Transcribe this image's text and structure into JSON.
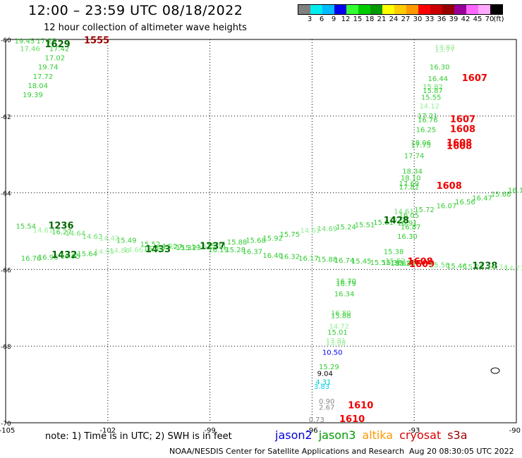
{
  "title": "12:00 – 23:59 UTC 08/18/2022",
  "subtitle": "12 hour collection of altimeter wave heights",
  "legend": {
    "unit": "(ft)",
    "ticks": [
      "3",
      "6",
      "9",
      "12",
      "15",
      "18",
      "21",
      "24",
      "27",
      "30",
      "33",
      "36",
      "39",
      "42",
      "45",
      "70"
    ],
    "colors": [
      "#808080",
      "#00eeee",
      "#00bbff",
      "#0000ee",
      "#33ff33",
      "#00cc00",
      "#009900",
      "#ffff00",
      "#ffcc00",
      "#ff9900",
      "#ff0000",
      "#cc0000",
      "#990000",
      "#990099",
      "#ff66ff",
      "#ffaaff",
      "#000000"
    ]
  },
  "axes": {
    "lon_labels": [
      "-105",
      "-102",
      "-99",
      "-96",
      "-93",
      "-90"
    ],
    "lat_labels": [
      "-60",
      "-62",
      "-64",
      "-66",
      "-68",
      "-70"
    ]
  },
  "tracks": [
    {
      "lon": -104.74,
      "lat": -60.1,
      "text": "19.45",
      "color": "#33cc33",
      "size": 10
    },
    {
      "lon": -104.1,
      "lat": -60.1,
      "text": "17.25",
      "color": "#33cc33",
      "size": 10
    },
    {
      "lon": -104.58,
      "lat": -60.3,
      "text": "17.46",
      "color": "#66dd66",
      "size": 10
    },
    {
      "lon": -103.72,
      "lat": -60.3,
      "text": "17.42",
      "color": "#33cc33",
      "size": 10
    },
    {
      "lon": -103.85,
      "lat": -60.2,
      "text": "1629",
      "color": "#006600",
      "size": 13,
      "bold": true
    },
    {
      "lon": -102.7,
      "lat": -60.1,
      "text": "1555",
      "color": "#990000",
      "size": 13,
      "bold": true
    },
    {
      "lon": -103.85,
      "lat": -60.54,
      "text": "17.02",
      "color": "#33cc33",
      "size": 10
    },
    {
      "lon": -104.05,
      "lat": -60.78,
      "text": "19.74",
      "color": "#33cc33",
      "size": 10
    },
    {
      "lon": -104.2,
      "lat": -61.03,
      "text": "17.72",
      "color": "#33cc33",
      "size": 10
    },
    {
      "lon": -104.35,
      "lat": -61.27,
      "text": "18.04",
      "color": "#33cc33",
      "size": 10
    },
    {
      "lon": -104.5,
      "lat": -61.51,
      "text": "19.39",
      "color": "#33cc33",
      "size": 10
    },
    {
      "lon": -92.4,
      "lat": -60.27,
      "text": "13.82",
      "color": "#99ee99",
      "size": 10
    },
    {
      "lon": -92.4,
      "lat": -60.33,
      "text": "13.77",
      "color": "#99ee99",
      "size": 10
    },
    {
      "lon": -92.55,
      "lat": -60.78,
      "text": "16.30",
      "color": "#33cc33",
      "size": 10
    },
    {
      "lon": -92.6,
      "lat": -61.08,
      "text": "16.44",
      "color": "#33cc33",
      "size": 10
    },
    {
      "lon": -91.6,
      "lat": -61.08,
      "text": "1607",
      "color": "#ee0000",
      "size": 13,
      "bold": true
    },
    {
      "lon": -92.75,
      "lat": -61.3,
      "text": "15.82",
      "color": "#66dd66",
      "size": 10
    },
    {
      "lon": -92.75,
      "lat": -61.4,
      "text": "15.87",
      "color": "#33cc33",
      "size": 10
    },
    {
      "lon": -92.8,
      "lat": -61.57,
      "text": "15.55",
      "color": "#33cc33",
      "size": 10
    },
    {
      "lon": -92.85,
      "lat": -61.8,
      "text": "14.12",
      "color": "#99ee99",
      "size": 10
    },
    {
      "lon": -92.9,
      "lat": -62.06,
      "text": "17.21",
      "color": "#33cc33",
      "size": 10
    },
    {
      "lon": -92.9,
      "lat": -62.16,
      "text": "16.76",
      "color": "#33cc33",
      "size": 10
    },
    {
      "lon": -91.95,
      "lat": -62.16,
      "text": "1607",
      "color": "#ee0000",
      "size": 13,
      "bold": true
    },
    {
      "lon": -92.95,
      "lat": -62.42,
      "text": "16.25",
      "color": "#33cc33",
      "size": 10
    },
    {
      "lon": -91.95,
      "lat": -62.42,
      "text": "1608",
      "color": "#ee0000",
      "size": 13,
      "bold": true
    },
    {
      "lon": -93.1,
      "lat": -62.76,
      "text": "18.06",
      "color": "#33cc33",
      "size": 10
    },
    {
      "lon": -93.1,
      "lat": -62.82,
      "text": "17.75",
      "color": "#33cc33",
      "size": 10
    },
    {
      "lon": -92.05,
      "lat": -62.78,
      "text": "1608",
      "color": "#ee0000",
      "size": 13,
      "bold": true
    },
    {
      "lon": -92.05,
      "lat": -62.86,
      "text": "1608",
      "color": "#ee0000",
      "size": 13,
      "bold": true
    },
    {
      "lon": -93.3,
      "lat": -63.1,
      "text": "17.74",
      "color": "#33cc33",
      "size": 10
    },
    {
      "lon": -93.35,
      "lat": -63.5,
      "text": "18.34",
      "color": "#33cc33",
      "size": 10
    },
    {
      "lon": -93.4,
      "lat": -63.68,
      "text": "18.10",
      "color": "#33cc33",
      "size": 10
    },
    {
      "lon": -93.45,
      "lat": -63.82,
      "text": "17.69",
      "color": "#33cc33",
      "size": 10
    },
    {
      "lon": -93.45,
      "lat": -63.92,
      "text": "17.82",
      "color": "#33cc33",
      "size": 10
    },
    {
      "lon": -92.35,
      "lat": -63.9,
      "text": "1608",
      "color": "#ee0000",
      "size": 13,
      "bold": true
    },
    {
      "lon": -104.7,
      "lat": -64.94,
      "text": "15.54",
      "color": "#33cc33",
      "size": 10
    },
    {
      "lon": -103.75,
      "lat": -64.94,
      "text": "1236",
      "color": "#006600",
      "size": 13,
      "bold": true
    },
    {
      "lon": -104.2,
      "lat": -65.04,
      "text": "14.61",
      "color": "#99ee99",
      "size": 10
    },
    {
      "lon": -103.65,
      "lat": -65.08,
      "text": "16.27",
      "color": "#33cc33",
      "size": 10
    },
    {
      "lon": -103.25,
      "lat": -65.12,
      "text": "14.64",
      "color": "#66dd66",
      "size": 10
    },
    {
      "lon": -102.75,
      "lat": -65.2,
      "text": "14.63",
      "color": "#66dd66",
      "size": 10
    },
    {
      "lon": -102.25,
      "lat": -65.25,
      "text": "14.42",
      "color": "#99ee99",
      "size": 10
    },
    {
      "lon": -101.75,
      "lat": -65.3,
      "text": "15.49",
      "color": "#33cc33",
      "size": 10
    },
    {
      "lon": -101.05,
      "lat": -65.4,
      "text": "15.52",
      "color": "#33cc33",
      "size": 10
    },
    {
      "lon": -100.55,
      "lat": -65.45,
      "text": "14.98",
      "color": "#99ee99",
      "size": 10
    },
    {
      "lon": -100.0,
      "lat": -65.5,
      "text": "15.31",
      "color": "#33cc33",
      "size": 10
    },
    {
      "lon": -99.55,
      "lat": -65.47,
      "text": "14.63",
      "color": "#66dd66",
      "size": 10
    },
    {
      "lon": -99.1,
      "lat": -65.45,
      "text": "15.11",
      "color": "#33cc33",
      "size": 10
    },
    {
      "lon": -98.5,
      "lat": -65.35,
      "text": "15.88",
      "color": "#33cc33",
      "size": 10
    },
    {
      "lon": -97.95,
      "lat": -65.3,
      "text": "15.68",
      "color": "#33cc33",
      "size": 10
    },
    {
      "lon": -97.45,
      "lat": -65.25,
      "text": "15.92",
      "color": "#33cc33",
      "size": 10
    },
    {
      "lon": -96.95,
      "lat": -65.15,
      "text": "15.75",
      "color": "#33cc33",
      "size": 10
    },
    {
      "lon": -96.35,
      "lat": -65.05,
      "text": "14.61",
      "color": "#99ee99",
      "size": 10
    },
    {
      "lon": -95.85,
      "lat": -65.0,
      "text": "14.69",
      "color": "#66dd66",
      "size": 10
    },
    {
      "lon": -95.3,
      "lat": -64.95,
      "text": "15.24",
      "color": "#33cc33",
      "size": 10
    },
    {
      "lon": -94.75,
      "lat": -64.9,
      "text": "15.51",
      "color": "#33cc33",
      "size": 10
    },
    {
      "lon": -94.2,
      "lat": -64.83,
      "text": "15.61",
      "color": "#33cc33",
      "size": 10
    },
    {
      "lon": -93.75,
      "lat": -64.76,
      "text": "14.66",
      "color": "#99ee99",
      "size": 10
    },
    {
      "lon": -93.45,
      "lat": -64.65,
      "text": "16.05",
      "color": "#33cc33",
      "size": 10
    },
    {
      "lon": -93.6,
      "lat": -64.55,
      "text": "14.61",
      "color": "#66dd66",
      "size": 10
    },
    {
      "lon": -93.9,
      "lat": -64.8,
      "text": "1428",
      "color": "#006600",
      "size": 13,
      "bold": true
    },
    {
      "lon": -93.5,
      "lat": -64.85,
      "text": "16.91",
      "color": "#33cc33",
      "size": 10
    },
    {
      "lon": -93.4,
      "lat": -64.95,
      "text": "16.87",
      "color": "#33cc33",
      "size": 10
    },
    {
      "lon": -93.5,
      "lat": -65.2,
      "text": "16.30",
      "color": "#33cc33",
      "size": 10
    },
    {
      "lon": -93.0,
      "lat": -64.5,
      "text": "15.72",
      "color": "#33cc33",
      "size": 10
    },
    {
      "lon": -92.35,
      "lat": -64.4,
      "text": "16.07",
      "color": "#33cc33",
      "size": 10
    },
    {
      "lon": -91.8,
      "lat": -64.3,
      "text": "16.56",
      "color": "#33cc33",
      "size": 10
    },
    {
      "lon": -91.3,
      "lat": -64.2,
      "text": "16.47",
      "color": "#33cc33",
      "size": 10
    },
    {
      "lon": -90.75,
      "lat": -64.1,
      "text": "15.68",
      "color": "#33cc33",
      "size": 10
    },
    {
      "lon": -90.25,
      "lat": -64.0,
      "text": "16.12",
      "color": "#33cc33",
      "size": 10
    },
    {
      "lon": -89.6,
      "lat": -63.9,
      "text": "16.15",
      "color": "#33cc33",
      "size": 10
    },
    {
      "lon": -88.9,
      "lat": -63.8,
      "text": "15.79",
      "color": "#33cc33",
      "size": 10
    },
    {
      "lon": -104.55,
      "lat": -65.77,
      "text": "16.76",
      "color": "#33cc33",
      "size": 10
    },
    {
      "lon": -104.05,
      "lat": -65.74,
      "text": "16.96",
      "color": "#33cc33",
      "size": 10
    },
    {
      "lon": -103.65,
      "lat": -65.7,
      "text": "1432",
      "color": "#006600",
      "size": 13,
      "bold": true
    },
    {
      "lon": -103.4,
      "lat": -65.72,
      "text": "16.95",
      "color": "#33cc33",
      "size": 10
    },
    {
      "lon": -102.9,
      "lat": -65.65,
      "text": "15.64",
      "color": "#33cc33",
      "size": 10
    },
    {
      "lon": -102.4,
      "lat": -65.6,
      "text": "14.95",
      "color": "#99ee99",
      "size": 10
    },
    {
      "lon": -101.95,
      "lat": -65.57,
      "text": "14.86",
      "color": "#99ee99",
      "size": 10
    },
    {
      "lon": -101.55,
      "lat": -65.55,
      "text": "14.66",
      "color": "#99ee99",
      "size": 10
    },
    {
      "lon": -100.9,
      "lat": -65.55,
      "text": "1433",
      "color": "#006600",
      "size": 13,
      "bold": true
    },
    {
      "lon": -100.95,
      "lat": -65.52,
      "text": "15.43",
      "color": "#33cc33",
      "size": 10
    },
    {
      "lon": -100.4,
      "lat": -65.47,
      "text": "15.27",
      "color": "#33cc33",
      "size": 10
    },
    {
      "lon": -99.85,
      "lat": -65.5,
      "text": "15.23",
      "color": "#33cc33",
      "size": 10
    },
    {
      "lon": -99.3,
      "lat": -65.47,
      "text": "1237",
      "color": "#006600",
      "size": 13,
      "bold": true
    },
    {
      "lon": -99.05,
      "lat": -65.55,
      "text": "16.19",
      "color": "#33cc33",
      "size": 10
    },
    {
      "lon": -98.55,
      "lat": -65.55,
      "text": "15.28",
      "color": "#33cc33",
      "size": 10
    },
    {
      "lon": -98.05,
      "lat": -65.6,
      "text": "16.37",
      "color": "#33cc33",
      "size": 10
    },
    {
      "lon": -97.45,
      "lat": -65.7,
      "text": "16.40",
      "color": "#33cc33",
      "size": 10
    },
    {
      "lon": -96.95,
      "lat": -65.73,
      "text": "16.32",
      "color": "#33cc33",
      "size": 10
    },
    {
      "lon": -96.4,
      "lat": -65.77,
      "text": "16.17",
      "color": "#33cc33",
      "size": 10
    },
    {
      "lon": -95.85,
      "lat": -65.8,
      "text": "15.88",
      "color": "#33cc33",
      "size": 10
    },
    {
      "lon": -95.35,
      "lat": -65.83,
      "text": "16.74",
      "color": "#33cc33",
      "size": 10
    },
    {
      "lon": -94.85,
      "lat": -65.85,
      "text": "15.45",
      "color": "#33cc33",
      "size": 10
    },
    {
      "lon": -94.3,
      "lat": -65.88,
      "text": "15.51",
      "color": "#33cc33",
      "size": 10
    },
    {
      "lon": -93.95,
      "lat": -65.88,
      "text": "15.36",
      "color": "#33cc33",
      "size": 10
    },
    {
      "lon": -93.9,
      "lat": -65.6,
      "text": "15.38",
      "color": "#33cc33",
      "size": 10
    },
    {
      "lon": -93.85,
      "lat": -65.84,
      "text": "15.52",
      "color": "#66dd66",
      "size": 10
    },
    {
      "lon": -93.7,
      "lat": -65.9,
      "text": "15.82",
      "color": "#33cc33",
      "size": 10
    },
    {
      "lon": -93.55,
      "lat": -65.9,
      "text": "15.84",
      "color": "#33cc33",
      "size": 10
    },
    {
      "lon": -93.2,
      "lat": -65.87,
      "text": "1608",
      "color": "#ee0000",
      "size": 13,
      "bold": true
    },
    {
      "lon": -93.15,
      "lat": -65.94,
      "text": "1609",
      "color": "#ee0000",
      "size": 13,
      "bold": true
    },
    {
      "lon": -92.55,
      "lat": -65.95,
      "text": "15.56",
      "color": "#66dd66",
      "size": 10
    },
    {
      "lon": -92.05,
      "lat": -65.97,
      "text": "15.46",
      "color": "#33cc33",
      "size": 10
    },
    {
      "lon": -91.55,
      "lat": -65.99,
      "text": "15.20",
      "color": "#66dd66",
      "size": 10
    },
    {
      "lon": -91.3,
      "lat": -65.98,
      "text": "1238",
      "color": "#006600",
      "size": 13,
      "bold": true
    },
    {
      "lon": -90.85,
      "lat": -66.0,
      "text": "14.74",
      "color": "#99ee99",
      "size": 10
    },
    {
      "lon": -90.35,
      "lat": -66.03,
      "text": "14.73",
      "color": "#99ee99",
      "size": 10
    },
    {
      "lon": -89.85,
      "lat": -66.05,
      "text": "13.75",
      "color": "#99ee99",
      "size": 10
    },
    {
      "lon": -89.25,
      "lat": -66.07,
      "text": "14.32",
      "color": "#99ee99",
      "size": 10
    },
    {
      "lon": -95.3,
      "lat": -66.37,
      "text": "16.70",
      "color": "#33cc33",
      "size": 10
    },
    {
      "lon": -95.3,
      "lat": -66.43,
      "text": "16.79",
      "color": "#33cc33",
      "size": 10
    },
    {
      "lon": -95.35,
      "lat": -66.7,
      "text": "16.34",
      "color": "#33cc33",
      "size": 10
    },
    {
      "lon": -95.45,
      "lat": -67.2,
      "text": "16.80",
      "color": "#66dd66",
      "size": 10
    },
    {
      "lon": -95.45,
      "lat": -67.27,
      "text": "15.88",
      "color": "#33cc33",
      "size": 10
    },
    {
      "lon": -95.5,
      "lat": -67.55,
      "text": "14.72",
      "color": "#99ee99",
      "size": 10
    },
    {
      "lon": -95.55,
      "lat": -67.7,
      "text": "15.01",
      "color": "#33cc33",
      "size": 10
    },
    {
      "lon": -95.6,
      "lat": -67.92,
      "text": "13.81",
      "color": "#99ee99",
      "size": 10
    },
    {
      "lon": -95.6,
      "lat": -67.98,
      "text": "13.88",
      "color": "#99ee99",
      "size": 10
    },
    {
      "lon": -95.7,
      "lat": -68.23,
      "text": "10.50",
      "color": "#0000ee",
      "size": 10
    },
    {
      "lon": -95.8,
      "lat": -68.6,
      "text": "15.29",
      "color": "#33cc33",
      "size": 10
    },
    {
      "lon": -95.85,
      "lat": -68.78,
      "text": "9.04",
      "color": "#000000",
      "size": 10
    },
    {
      "lon": -95.9,
      "lat": -69.0,
      "text": "4.31",
      "color": "#00cccc",
      "size": 10
    },
    {
      "lon": -95.95,
      "lat": -69.12,
      "text": "3.83",
      "color": "#00ccee",
      "size": 10
    },
    {
      "lon": -95.8,
      "lat": -69.5,
      "text": "0.90",
      "color": "#888888",
      "size": 10
    },
    {
      "lon": -95.8,
      "lat": -69.66,
      "text": "2.67",
      "color": "#888888",
      "size": 10
    },
    {
      "lon": -94.95,
      "lat": -69.62,
      "text": "1610",
      "color": "#ee0000",
      "size": 13,
      "bold": true
    },
    {
      "lon": -96.1,
      "lat": -69.98,
      "text": "0.73",
      "color": "#888888",
      "size": 10
    },
    {
      "lon": -95.2,
      "lat": -69.98,
      "text": "1610",
      "color": "#ee0000",
      "size": 13,
      "bold": true
    }
  ],
  "note": "note: 1) Time is in UTC; 2) SWH is in feet",
  "missions": [
    {
      "name": "jason2",
      "color": "#0000dd"
    },
    {
      "name": "jason3",
      "color": "#009900"
    },
    {
      "name": "altika",
      "color": "#ff9900"
    },
    {
      "name": "cryosat",
      "color": "#dd0000"
    },
    {
      "name": "s3a",
      "color": "#990000"
    }
  ],
  "credit": "NOAA/NESDIS Center for Satellite Applications and Research",
  "timestamp": "Aug 20 08:30:05 UTC 2022"
}
